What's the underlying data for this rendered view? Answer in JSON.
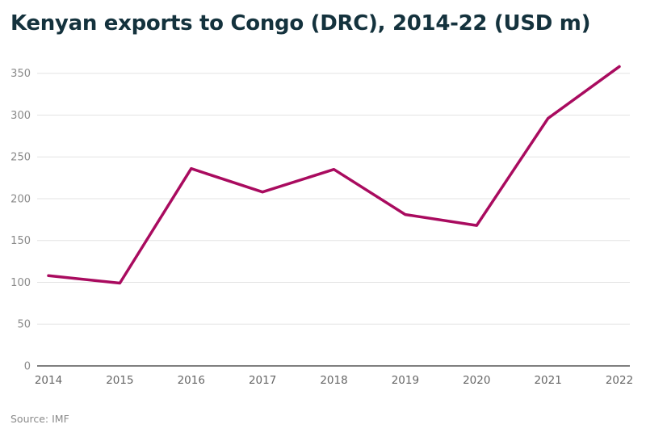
{
  "chart_data": {
    "type": "line",
    "title": "Kenyan exports to Congo (DRC), 2014-22 (USD m)",
    "x": [
      "2014",
      "2015",
      "2016",
      "2017",
      "2018",
      "2019",
      "2020",
      "2021",
      "2022"
    ],
    "series": [
      {
        "values": [
          108,
          99,
          236,
          208,
          235,
          181,
          168,
          296,
          358
        ]
      }
    ],
    "xlabel": "",
    "ylabel": "",
    "ylim": [
      0,
      370
    ],
    "yticks": [
      "0",
      "50",
      "100",
      "150",
      "200",
      "250",
      "300",
      "350"
    ],
    "grid": "horizontal",
    "line_color": "#a90b5f"
  },
  "source": "Source: IMF"
}
